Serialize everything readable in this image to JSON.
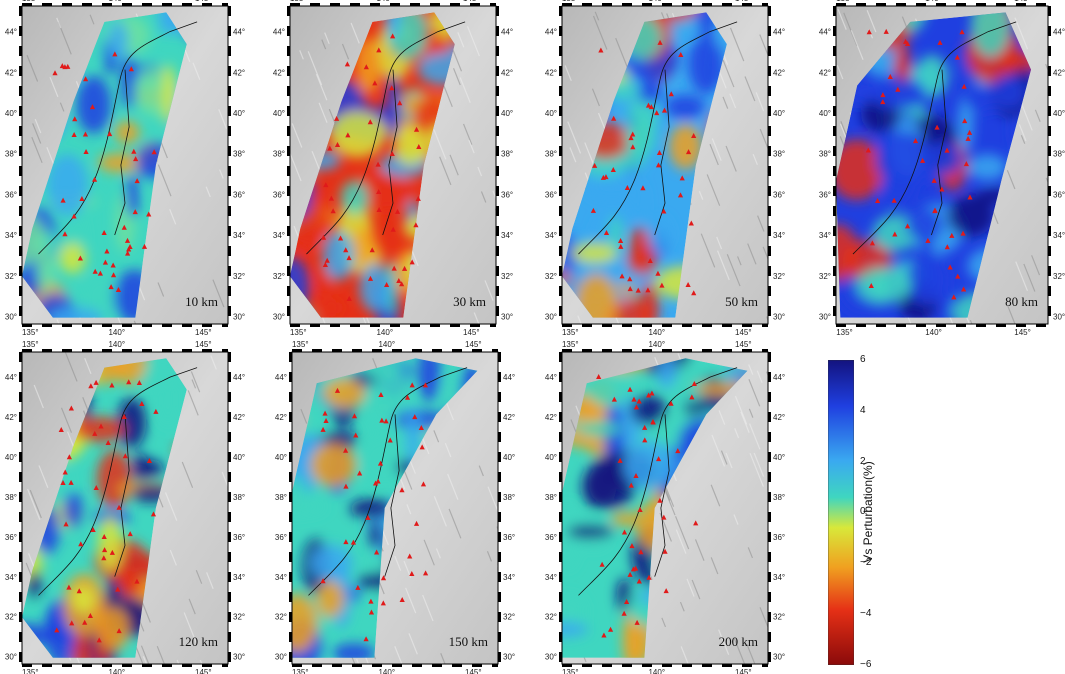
{
  "panels": [
    {
      "depth": "10 km",
      "row": 0,
      "col": 0,
      "pattern": "shallow"
    },
    {
      "depth": "30 km",
      "row": 0,
      "col": 1,
      "pattern": "crust"
    },
    {
      "depth": "50 km",
      "row": 0,
      "col": 2,
      "pattern": "moho"
    },
    {
      "depth": "80 km",
      "row": 0,
      "col": 3,
      "pattern": "fast"
    },
    {
      "depth": "120 km",
      "row": 1,
      "col": 0,
      "pattern": "deep"
    },
    {
      "depth": "150 km",
      "row": 1,
      "col": 1,
      "pattern": "slab"
    },
    {
      "depth": "200 km",
      "row": 1,
      "col": 2,
      "pattern": "slab"
    }
  ],
  "lon_ticks": [
    "135°",
    "140°",
    "145°"
  ],
  "lat_ticks": [
    "44°",
    "42°",
    "40°",
    "38°",
    "36°",
    "34°",
    "32°",
    "30°"
  ],
  "colorbar": {
    "title": "Vs Perturbation(%)",
    "ticks": [
      "6",
      "4",
      "2",
      "0",
      "−2",
      "−4",
      "−6"
    ],
    "range": [
      -6,
      6
    ]
  },
  "colors": {
    "fast": "#1a1a9a",
    "neutral": "#3fd6c0",
    "slow": "#c21a1a",
    "volcano": "#e01a1a",
    "topo_light": "#d4d4d4",
    "topo_dark": "#9a9a9a"
  }
}
